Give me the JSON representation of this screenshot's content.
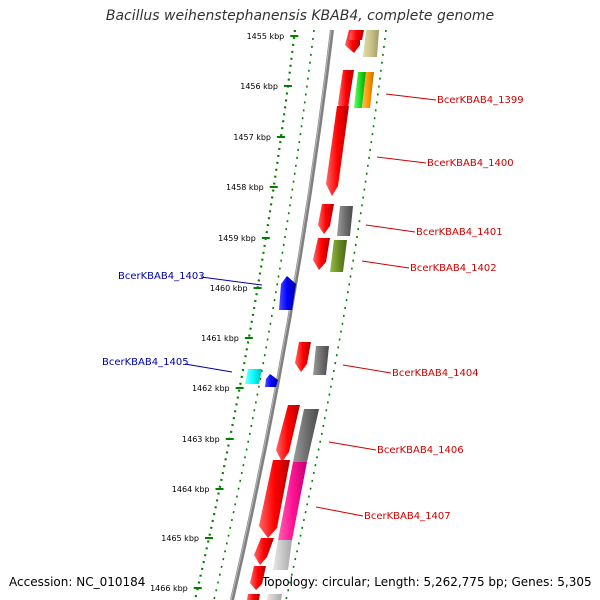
{
  "title": "Bacillus weihenstephanensis KBAB4, complete genome",
  "footer": {
    "accession": "Accession: NC_010184",
    "topology": "Topology: circular; Length: 5,262,775 bp; Genes: 5,305"
  },
  "ticks": [
    "1455 kbp",
    "1456 kbp",
    "1457 kbp",
    "1458 kbp",
    "1459 kbp",
    "1460 kbp",
    "1461 kbp",
    "1462 kbp",
    "1463 kbp",
    "1464 kbp",
    "1465 kbp",
    "1466 kbp"
  ],
  "gene_labels": [
    {
      "text": "BcerKBAB4_1399",
      "color": "#cc0000"
    },
    {
      "text": "BcerKBAB4_1400",
      "color": "#cc0000"
    },
    {
      "text": "BcerKBAB4_1401",
      "color": "#cc0000"
    },
    {
      "text": "BcerKBAB4_1402",
      "color": "#cc0000"
    },
    {
      "text": "BcerKBAB4_1403",
      "color": "#0000aa"
    },
    {
      "text": "BcerKBAB4_1404",
      "color": "#cc0000"
    },
    {
      "text": "BcerKBAB4_1405",
      "color": "#0000aa"
    },
    {
      "text": "BcerKBAB4_1406",
      "color": "#cc0000"
    },
    {
      "text": "BcerKBAB4_1407",
      "color": "#cc0000"
    }
  ],
  "colors": {
    "forward_cds": "#ff0000",
    "reverse_cds": "#0000ff",
    "backbone": "#808080",
    "tick_dots": "#008000"
  }
}
